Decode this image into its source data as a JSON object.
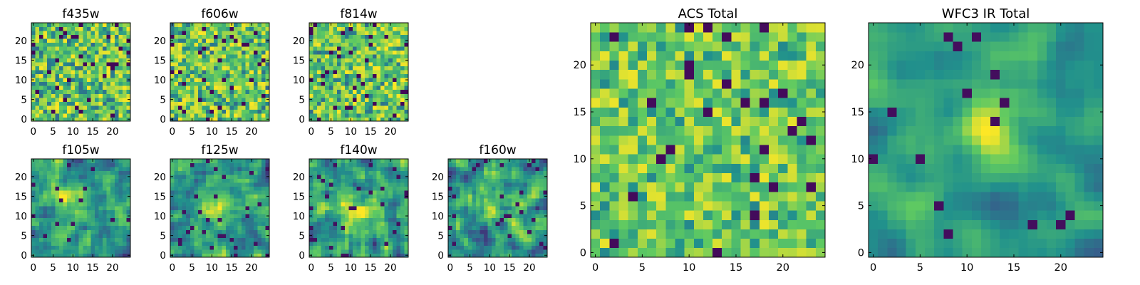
{
  "colormap": [
    "#440154",
    "#3b528b",
    "#21918c",
    "#5ec962",
    "#fde725"
  ],
  "chart_data": [
    {
      "id": "f435w",
      "type": "heatmap",
      "title": "f435w",
      "grid_size": 25,
      "xticks": [
        "0",
        "5",
        "10",
        "15",
        "20"
      ],
      "yticks": [
        "0",
        "5",
        "10",
        "15",
        "20"
      ],
      "xlim": [
        0,
        25
      ],
      "ylim": [
        0,
        25
      ],
      "pattern": "noise",
      "seed": 11
    },
    {
      "id": "f606w",
      "type": "heatmap",
      "title": "f606w",
      "grid_size": 25,
      "xticks": [
        "0",
        "5",
        "10",
        "15",
        "20"
      ],
      "yticks": [
        "0",
        "5",
        "10",
        "15",
        "20"
      ],
      "xlim": [
        0,
        25
      ],
      "ylim": [
        0,
        25
      ],
      "pattern": "noise",
      "seed": 23
    },
    {
      "id": "f814w",
      "type": "heatmap",
      "title": "f814w",
      "grid_size": 25,
      "xticks": [
        "0",
        "5",
        "10",
        "15",
        "20"
      ],
      "yticks": [
        "0",
        "5",
        "10",
        "15",
        "20"
      ],
      "xlim": [
        0,
        25
      ],
      "ylim": [
        0,
        25
      ],
      "pattern": "noise",
      "seed": 37
    },
    {
      "id": "f105w",
      "type": "heatmap",
      "title": "f105w",
      "grid_size": 25,
      "xticks": [
        "0",
        "5",
        "10",
        "15",
        "20"
      ],
      "yticks": [
        "0",
        "5",
        "10",
        "15",
        "20"
      ],
      "xlim": [
        0,
        25
      ],
      "ylim": [
        0,
        25
      ],
      "pattern": "smooth",
      "seed": 41
    },
    {
      "id": "f125w",
      "type": "heatmap",
      "title": "f125w",
      "grid_size": 25,
      "xticks": [
        "0",
        "5",
        "10",
        "15",
        "20"
      ],
      "yticks": [
        "0",
        "5",
        "10",
        "15",
        "20"
      ],
      "xlim": [
        0,
        25
      ],
      "ylim": [
        0,
        25
      ],
      "pattern": "smooth",
      "seed": 53
    },
    {
      "id": "f140w",
      "type": "heatmap",
      "title": "f140w",
      "grid_size": 25,
      "xticks": [
        "0",
        "5",
        "10",
        "15",
        "20"
      ],
      "yticks": [
        "0",
        "5",
        "10",
        "15",
        "20"
      ],
      "xlim": [
        0,
        25
      ],
      "ylim": [
        0,
        25
      ],
      "pattern": "smooth",
      "seed": 67
    },
    {
      "id": "f160w",
      "type": "heatmap",
      "title": "f160w",
      "grid_size": 25,
      "xticks": [
        "0",
        "5",
        "10",
        "15",
        "20"
      ],
      "yticks": [
        "0",
        "5",
        "10",
        "15",
        "20"
      ],
      "xlim": [
        0,
        25
      ],
      "ylim": [
        0,
        25
      ],
      "pattern": "smooth",
      "seed": 79
    },
    {
      "id": "acs-total",
      "type": "heatmap",
      "title": "ACS Total",
      "grid_size": 25,
      "xticks": [
        "0",
        "5",
        "10",
        "15",
        "20"
      ],
      "yticks": [
        "0",
        "5",
        "10",
        "15",
        "20"
      ],
      "xlim": [
        0,
        25
      ],
      "ylim": [
        0,
        25
      ],
      "pattern": "acs",
      "seed": 97
    },
    {
      "id": "wfc3-ir-total",
      "type": "heatmap",
      "title": "WFC3 IR Total",
      "grid_size": 25,
      "xticks": [
        "0",
        "5",
        "10",
        "15",
        "20"
      ],
      "yticks": [
        "0",
        "5",
        "10",
        "15",
        "20"
      ],
      "xlim": [
        0,
        25
      ],
      "ylim": [
        0,
        25
      ],
      "pattern": "ir",
      "seed": 131
    }
  ]
}
